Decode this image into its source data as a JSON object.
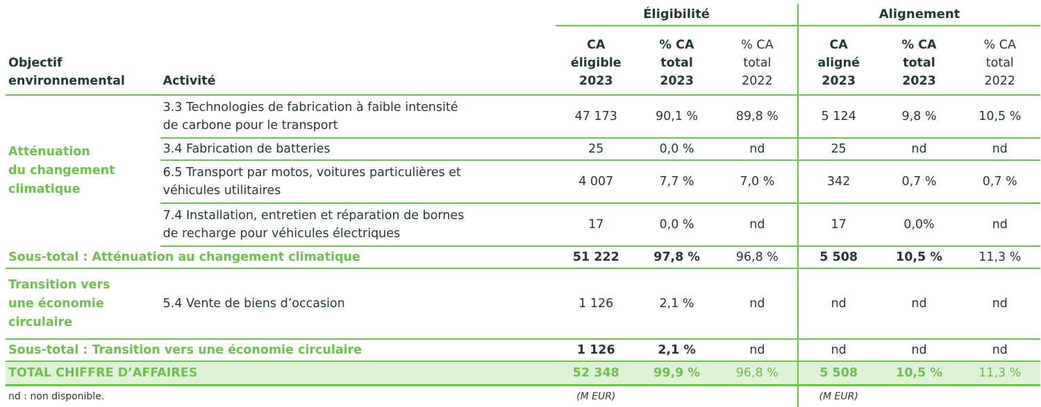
{
  "header": {
    "group_eligibility": "Éligibilité",
    "group_alignment": "Alignement",
    "col_objective_l1": "Objectif",
    "col_objective_l2": "environnemental",
    "col_activity": "Activité",
    "elig_ca": [
      "CA",
      "éligible",
      "2023"
    ],
    "elig_pct_2023": [
      "% CA",
      "total",
      "2023"
    ],
    "elig_pct_2022": [
      "% CA",
      "total",
      "2022"
    ],
    "align_ca": [
      "CA",
      "aligné",
      "2023"
    ],
    "align_pct_2023": [
      "% CA",
      "total",
      "2023"
    ],
    "align_pct_2022": [
      "% CA",
      "total",
      "2022"
    ]
  },
  "mitigation": {
    "objective": [
      "Atténuation",
      "du changement",
      "climatique"
    ],
    "rows": [
      {
        "activity": [
          "3.3 Technologies de fabrication à faible intensité",
          "de carbone pour le transport"
        ],
        "values": [
          "47 173",
          "90,1 %",
          "89,8 %",
          "5 124",
          "9,8 %",
          "10,5 %"
        ]
      },
      {
        "activity": [
          "3.4 Fabrication de batteries"
        ],
        "values": [
          "25",
          "0,0 %",
          "nd",
          "25",
          "nd",
          "nd"
        ]
      },
      {
        "activity": [
          "6.5 Transport par motos, voitures particulières et",
          "véhicules utilitaires"
        ],
        "values": [
          "4 007",
          "7,7 %",
          "7,0 %",
          "342",
          "0,7 %",
          "0,7 %"
        ]
      },
      {
        "activity": [
          "7.4 Installation, entretien et réparation de bornes",
          "de recharge pour véhicules électriques"
        ],
        "values": [
          "17",
          "0,0 %",
          "nd",
          "17",
          "0,0%",
          "nd"
        ]
      }
    ],
    "subtotal_label": "Sous-total : Atténuation au changement climatique",
    "subtotal_values": [
      "51 222",
      "97,8 %",
      "96,8 %",
      "5 508",
      "10,5 %",
      "11,3 %"
    ]
  },
  "circular": {
    "objective": [
      "Transition vers",
      "une économie",
      "circulaire"
    ],
    "activity": "5.4 Vente de biens d’occasion",
    "values": [
      "1 126",
      "2,1 %",
      "nd",
      "nd",
      "nd",
      "nd"
    ],
    "subtotal_label": "Sous-total : Transition vers une économie circulaire",
    "subtotal_values": [
      "1 126",
      "2,1 %",
      "nd",
      "nd",
      "nd",
      "nd"
    ]
  },
  "total": {
    "label": "TOTAL CHIFFRE D’AFFAIRES",
    "values": [
      "52 348",
      "99,9 %",
      "96,8 %",
      "5 508",
      "10,5 %",
      "11,3 %"
    ]
  },
  "footer": {
    "note": "nd : non disponible.",
    "unit_eligibility": "(M EUR)",
    "unit_alignment": "(M EUR)"
  },
  "colors": {
    "accent_green": "#6cc24a",
    "dark_text": "#1f3b2c",
    "total_bg": "#dff1d6"
  }
}
